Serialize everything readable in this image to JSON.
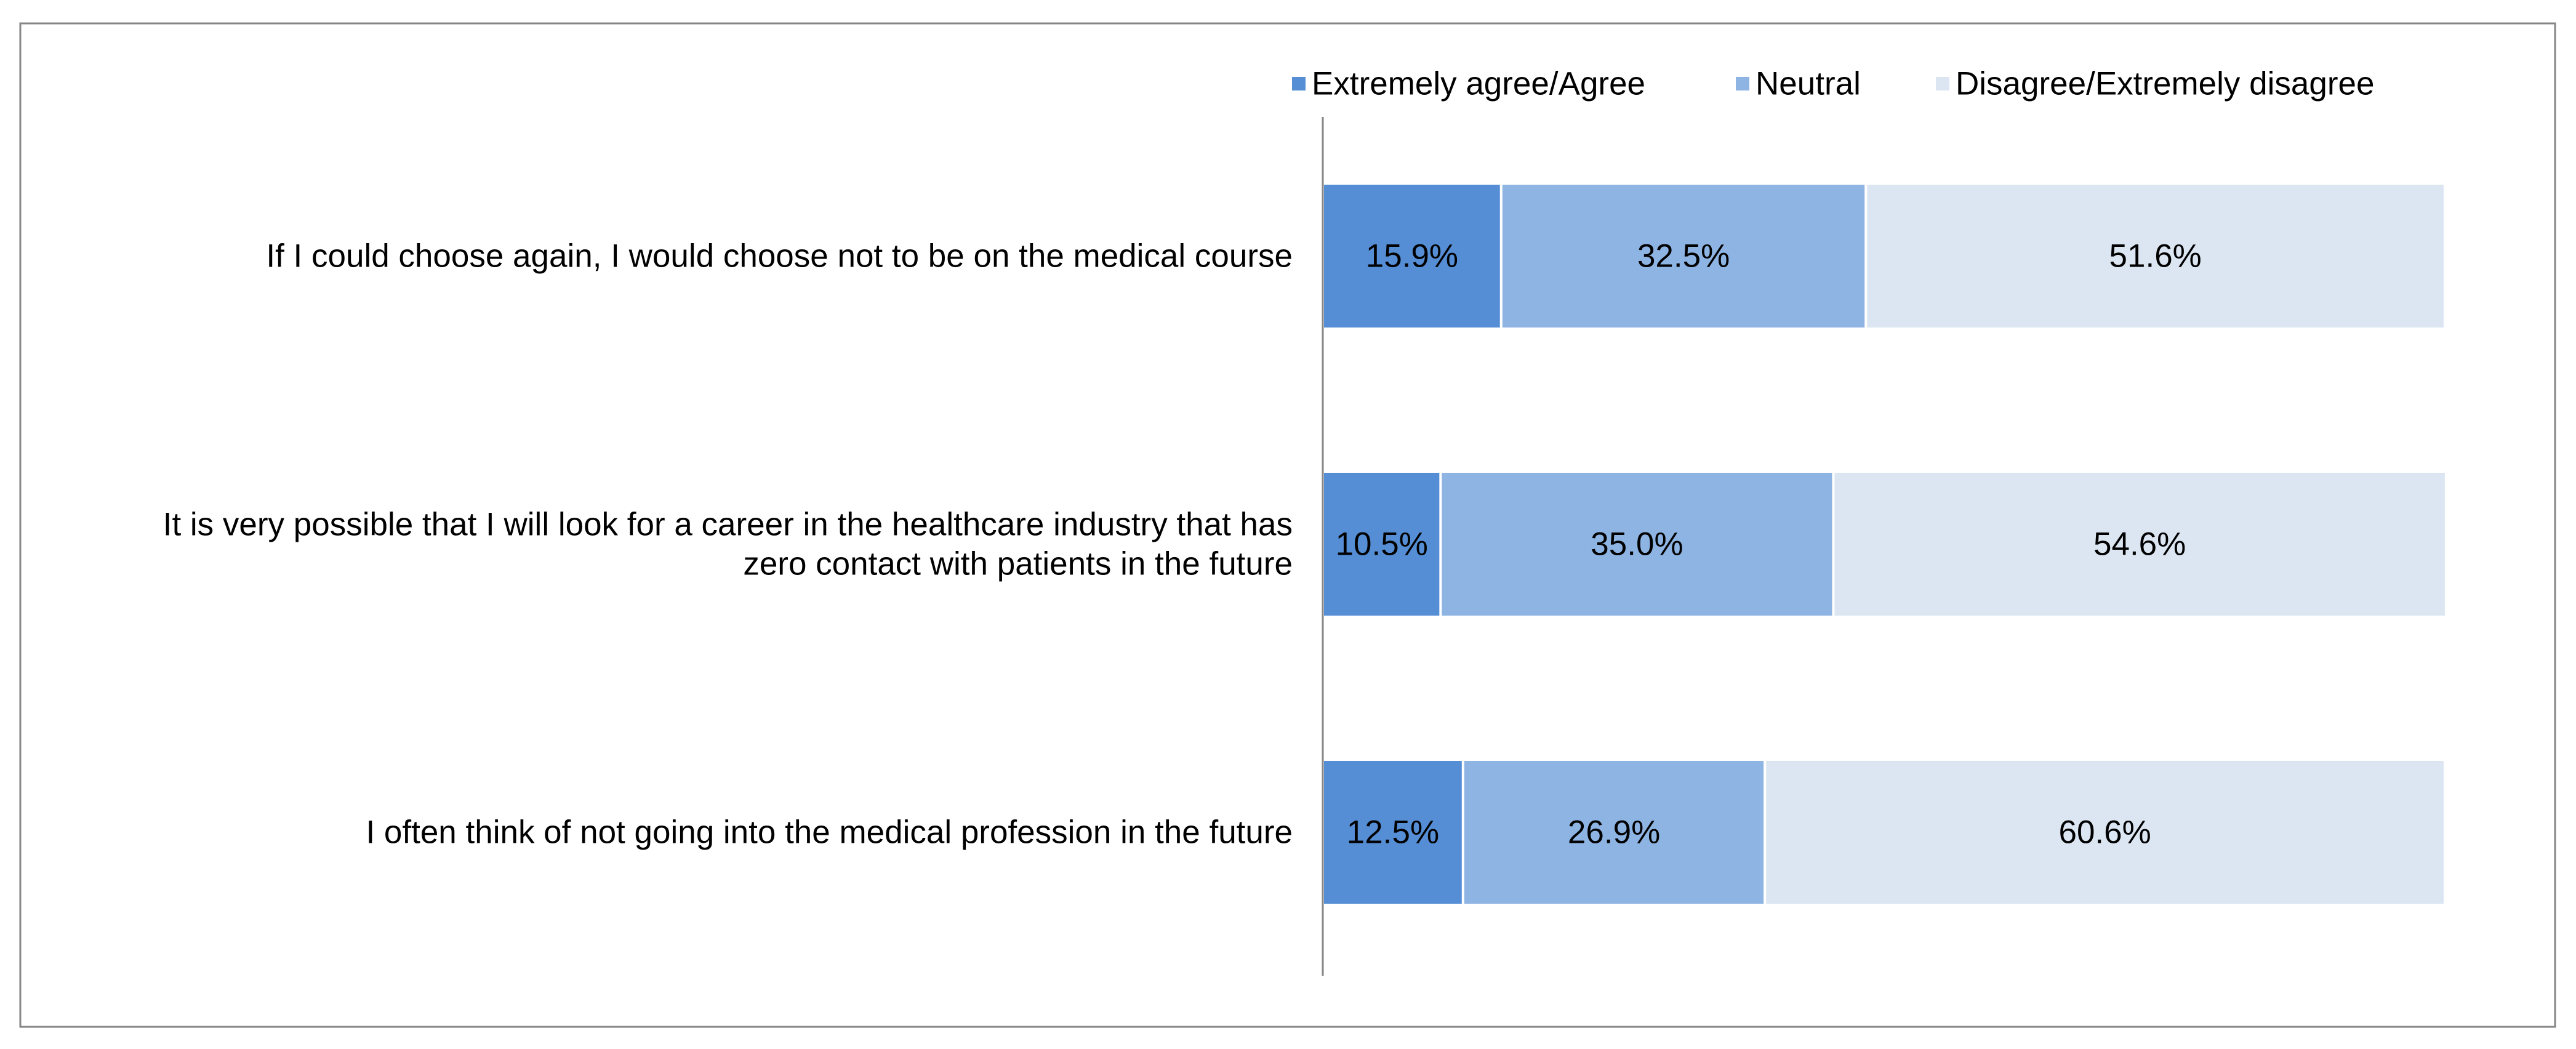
{
  "chart_data": {
    "type": "bar",
    "orientation": "horizontal",
    "stacked": true,
    "title": "",
    "xlabel": "",
    "ylabel": "",
    "xlim": [
      0,
      100
    ],
    "legend_position": "top",
    "categories": [
      [
        "If I could choose again, I would choose not to be on the medical course"
      ],
      [
        "It is very possible that I will look for a career in the healthcare industry that has",
        "zero contact with patients in the future"
      ],
      [
        "I often think of not going into the medical profession in the future"
      ]
    ],
    "series": [
      {
        "name": "Extremely agree/Agree",
        "color": "#558ed5",
        "values": [
          15.9,
          10.5,
          12.5
        ],
        "labels": [
          "15.9%",
          "10.5%",
          "12.5%"
        ]
      },
      {
        "name": "Neutral",
        "color": "#8eb4e3",
        "values": [
          32.5,
          35.0,
          26.9
        ],
        "labels": [
          "32.5%",
          "35.0%",
          "26.9%"
        ]
      },
      {
        "name": "Disagree/Extremely disagree",
        "color": "#dce6f2",
        "values": [
          51.6,
          54.6,
          60.6
        ],
        "labels": [
          "51.6%",
          "54.6%",
          "60.6%"
        ]
      }
    ]
  }
}
